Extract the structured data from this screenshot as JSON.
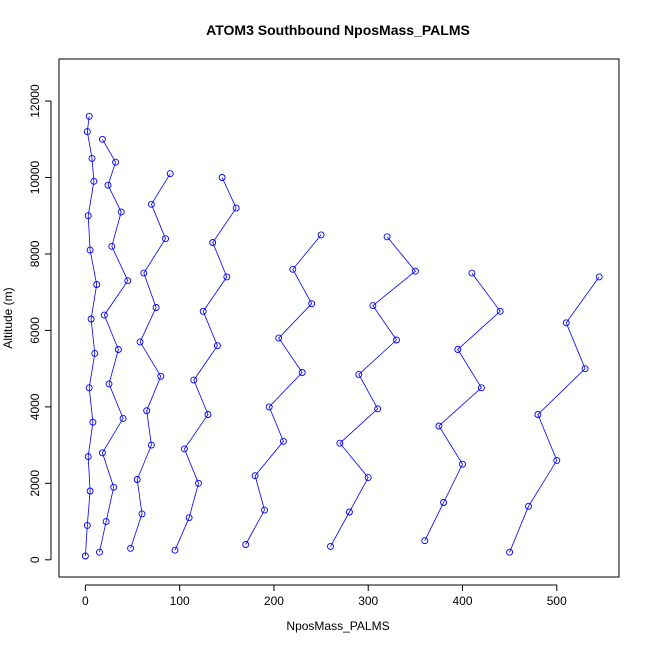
{
  "chart_data": {
    "type": "scatter",
    "title": "ATOM3 Southbound NposMass_PALMS",
    "xlabel": "NposMass_PALMS",
    "ylabel": "Altitude (m)",
    "xlim": [
      -28,
      566
    ],
    "ylim": [
      -450,
      13100
    ],
    "x_ticks": [
      0,
      100,
      200,
      300,
      400,
      500
    ],
    "y_ticks": [
      0,
      2000,
      4000,
      6000,
      8000,
      10000,
      12000
    ],
    "grid": false,
    "legend": "none",
    "series_color": "#0000ff",
    "marker": "open-circle",
    "connected": true,
    "profiles": [
      {
        "x": [
          0,
          2,
          5,
          3,
          8,
          4,
          10,
          6,
          12,
          5,
          3,
          9,
          7,
          2,
          4
        ],
        "y": [
          100,
          900,
          1800,
          2700,
          3600,
          4500,
          5400,
          6300,
          7200,
          8100,
          9000,
          9900,
          10500,
          11200,
          11600
        ]
      },
      {
        "x": [
          15,
          22,
          30,
          18,
          40,
          25,
          35,
          20,
          45,
          28,
          38,
          24,
          32,
          18
        ],
        "y": [
          200,
          1000,
          1900,
          2800,
          3700,
          4600,
          5500,
          6400,
          7300,
          8200,
          9100,
          9800,
          10400,
          11000
        ]
      },
      {
        "x": [
          48,
          60,
          55,
          70,
          65,
          80,
          58,
          75,
          62,
          85,
          70,
          90
        ],
        "y": [
          300,
          1200,
          2100,
          3000,
          3900,
          4800,
          5700,
          6600,
          7500,
          8400,
          9300,
          10100
        ]
      },
      {
        "x": [
          95,
          110,
          120,
          105,
          130,
          115,
          140,
          125,
          150,
          135,
          160,
          145
        ],
        "y": [
          250,
          1100,
          2000,
          2900,
          3800,
          4700,
          5600,
          6500,
          7400,
          8300,
          9200,
          10000
        ]
      },
      {
        "x": [
          170,
          190,
          180,
          210,
          195,
          230,
          205,
          240,
          220,
          250
        ],
        "y": [
          400,
          1300,
          2200,
          3100,
          4000,
          4900,
          5800,
          6700,
          7600,
          8500
        ]
      },
      {
        "x": [
          260,
          280,
          300,
          270,
          310,
          290,
          330,
          305,
          350,
          320
        ],
        "y": [
          350,
          1250,
          2150,
          3050,
          3950,
          4850,
          5750,
          6650,
          7550,
          8450
        ]
      },
      {
        "x": [
          360,
          380,
          400,
          375,
          420,
          395,
          440,
          410
        ],
        "y": [
          500,
          1500,
          2500,
          3500,
          4500,
          5500,
          6500,
          7500
        ]
      },
      {
        "x": [
          450,
          470,
          500,
          480,
          530,
          510,
          545
        ],
        "y": [
          200,
          1400,
          2600,
          3800,
          5000,
          6200,
          7400
        ]
      }
    ]
  }
}
